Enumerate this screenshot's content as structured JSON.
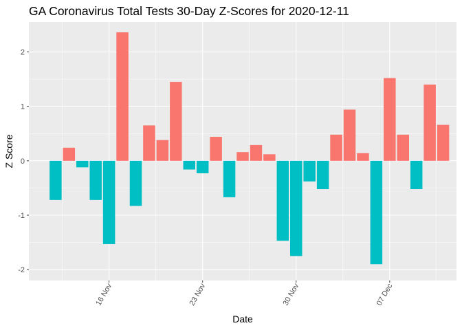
{
  "chart_data": {
    "type": "bar",
    "title": "GA Coronavirus Total Tests 30-Day Z-Scores for 2020-12-11",
    "xlabel": "Date",
    "ylabel": "Z Score",
    "x": [
      "2020-11-12",
      "2020-11-13",
      "2020-11-14",
      "2020-11-15",
      "2020-11-16",
      "2020-11-17",
      "2020-11-18",
      "2020-11-19",
      "2020-11-20",
      "2020-11-21",
      "2020-11-22",
      "2020-11-23",
      "2020-11-24",
      "2020-11-25",
      "2020-11-26",
      "2020-11-27",
      "2020-11-28",
      "2020-11-29",
      "2020-11-30",
      "2020-12-01",
      "2020-12-02",
      "2020-12-03",
      "2020-12-04",
      "2020-12-05",
      "2020-12-06",
      "2020-12-07",
      "2020-12-08",
      "2020-12-09",
      "2020-12-10",
      "2020-12-11"
    ],
    "values": [
      -0.72,
      0.24,
      -0.12,
      -0.72,
      -1.53,
      2.36,
      -0.83,
      0.65,
      0.38,
      1.45,
      -0.16,
      -0.23,
      0.44,
      -0.67,
      0.16,
      0.29,
      0.12,
      -1.47,
      -1.75,
      -0.38,
      -0.52,
      0.48,
      0.94,
      0.14,
      -1.9,
      1.52,
      0.48,
      -0.52,
      1.4,
      0.66
    ],
    "x_ticks": [
      "16 Nov",
      "23 Nov",
      "30 Nov",
      "07 Dec"
    ],
    "x_tick_dates": [
      "2020-11-16",
      "2020-11-23",
      "2020-11-30",
      "2020-12-07"
    ],
    "y_ticks": [
      -2,
      -1,
      0,
      1,
      2
    ],
    "ylim": [
      -2.2,
      2.55
    ],
    "xlim": [
      "2020-11-10",
      "2020-12-12"
    ],
    "grid": true,
    "legend": "none",
    "colors": {
      "positive": "#F8766D",
      "negative": "#00BFC4",
      "panel": "#EBEBEB",
      "grid": "#FFFFFF"
    }
  }
}
